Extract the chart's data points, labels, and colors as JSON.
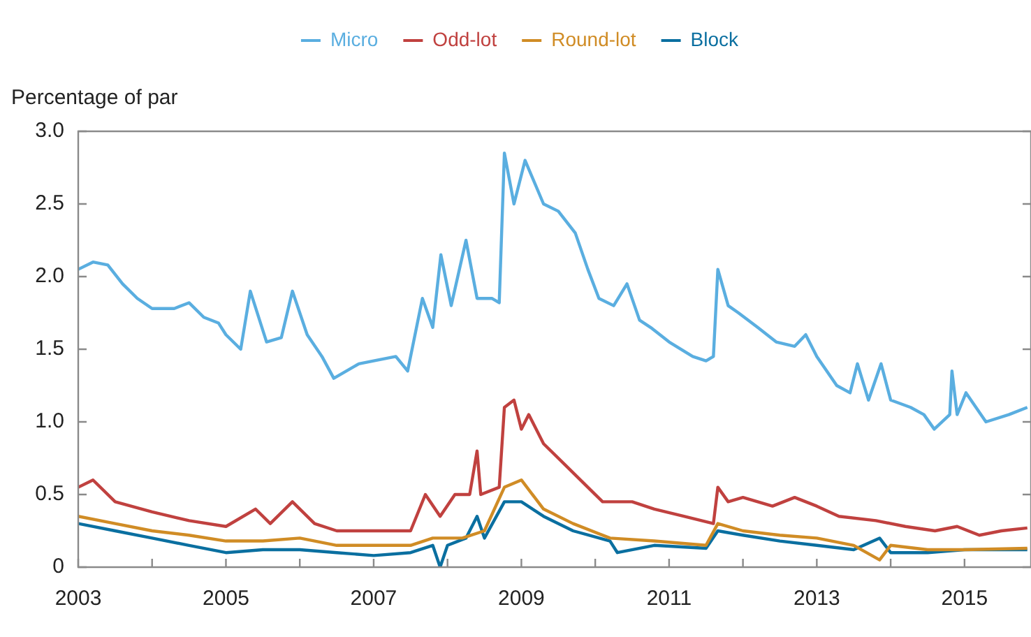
{
  "chart_data": {
    "type": "line",
    "ylabel": "Percentage of par",
    "legend": "top",
    "grid": false,
    "marker": "none",
    "xlim": [
      2003,
      2015.9
    ],
    "xticks": [
      2003,
      {
        "value": 2004,
        "label": null
      },
      2005,
      {
        "value": 2006,
        "label": null
      },
      2007,
      {
        "value": 2008,
        "label": null
      },
      2009,
      {
        "value": 2010,
        "label": null
      },
      2011,
      {
        "value": 2012,
        "label": null
      },
      2013,
      {
        "value": 2014,
        "label": null
      },
      2015
    ],
    "ylim": [
      0,
      3
    ],
    "yticks": [
      0,
      0.5,
      {
        "value": 1,
        "label": "1.0"
      },
      1.5,
      {
        "value": 2,
        "label": "2.0"
      },
      2.5,
      {
        "value": 3,
        "label": "3.0"
      }
    ],
    "series": [
      {
        "name": "Micro",
        "color": "#5aaee0",
        "x": [
          2003,
          2003.2,
          2003.4,
          2003.6,
          2003.8,
          2004,
          2004.3,
          2004.5,
          2004.7,
          2004.9,
          2005,
          2005.2,
          2005.33,
          2005.55,
          2005.75,
          2005.9,
          2006.1,
          2006.3,
          2006.46,
          2006.8,
          2007,
          2007.3,
          2007.46,
          2007.66,
          2007.8,
          2007.91,
          2008.05,
          2008.25,
          2008.4,
          2008.6,
          2008.7,
          2008.77,
          2008.9,
          2009.05,
          2009.3,
          2009.5,
          2009.73,
          2009.9,
          2010.05,
          2010.25,
          2010.43,
          2010.6,
          2010.75,
          2011,
          2011.32,
          2011.5,
          2011.6,
          2011.66,
          2011.8,
          2011.94,
          2012.2,
          2012.45,
          2012.7,
          2012.85,
          2013,
          2013.27,
          2013.45,
          2013.55,
          2013.7,
          2013.87,
          2014,
          2014.27,
          2014.45,
          2014.59,
          2014.8,
          2014.83,
          2014.9,
          2015.02,
          2015.29,
          2015.6,
          2015.85
        ],
        "values": [
          2.05,
          2.1,
          2.08,
          1.95,
          1.85,
          1.78,
          1.78,
          1.82,
          1.72,
          1.68,
          1.6,
          1.5,
          1.9,
          1.55,
          1.58,
          1.9,
          1.6,
          1.45,
          1.3,
          1.4,
          1.42,
          1.45,
          1.35,
          1.85,
          1.65,
          2.15,
          1.8,
          2.25,
          1.85,
          1.85,
          1.82,
          2.85,
          2.5,
          2.8,
          2.5,
          2.45,
          2.3,
          2.05,
          1.85,
          1.8,
          1.95,
          1.7,
          1.65,
          1.55,
          1.45,
          1.42,
          1.45,
          2.05,
          1.8,
          1.75,
          1.65,
          1.55,
          1.52,
          1.6,
          1.45,
          1.25,
          1.2,
          1.4,
          1.15,
          1.4,
          1.15,
          1.1,
          1.05,
          0.95,
          1.05,
          1.35,
          1.05,
          1.2,
          1.0,
          1.05,
          1.1
        ]
      },
      {
        "name": "Odd-lot",
        "color": "#c0413f",
        "x": [
          2003,
          2003.2,
          2003.5,
          2004,
          2004.5,
          2005,
          2005.4,
          2005.6,
          2005.9,
          2006.2,
          2006.5,
          2007,
          2007.5,
          2007.7,
          2007.9,
          2008.1,
          2008.3,
          2008.4,
          2008.45,
          2008.7,
          2008.77,
          2008.9,
          2009,
          2009.1,
          2009.3,
          2009.6,
          2009.9,
          2010.1,
          2010.5,
          2010.8,
          2011.2,
          2011.6,
          2011.66,
          2011.8,
          2012,
          2012.4,
          2012.7,
          2013,
          2013.3,
          2013.8,
          2014.2,
          2014.6,
          2014.9,
          2015.2,
          2015.5,
          2015.85
        ],
        "values": [
          0.55,
          0.6,
          0.45,
          0.38,
          0.32,
          0.28,
          0.4,
          0.3,
          0.45,
          0.3,
          0.25,
          0.25,
          0.25,
          0.5,
          0.35,
          0.5,
          0.5,
          0.8,
          0.5,
          0.55,
          1.1,
          1.15,
          0.95,
          1.05,
          0.85,
          0.7,
          0.55,
          0.45,
          0.45,
          0.4,
          0.35,
          0.3,
          0.55,
          0.45,
          0.48,
          0.42,
          0.48,
          0.42,
          0.35,
          0.32,
          0.28,
          0.25,
          0.28,
          0.22,
          0.25,
          0.27
        ]
      },
      {
        "name": "Round-lot",
        "color": "#d08c25",
        "x": [
          2003,
          2003.5,
          2004,
          2004.5,
          2005,
          2005.5,
          2006,
          2006.5,
          2007,
          2007.5,
          2007.8,
          2008.2,
          2008.5,
          2008.77,
          2009,
          2009.3,
          2009.7,
          2010.2,
          2010.8,
          2011.5,
          2011.66,
          2012,
          2012.5,
          2013,
          2013.5,
          2013.85,
          2014,
          2014.5,
          2015,
          2015.85
        ],
        "values": [
          0.35,
          0.3,
          0.25,
          0.22,
          0.18,
          0.18,
          0.2,
          0.15,
          0.15,
          0.15,
          0.2,
          0.2,
          0.25,
          0.55,
          0.6,
          0.4,
          0.3,
          0.2,
          0.18,
          0.15,
          0.3,
          0.25,
          0.22,
          0.2,
          0.15,
          0.05,
          0.15,
          0.12,
          0.12,
          0.13
        ]
      },
      {
        "name": "Block",
        "color": "#0a6fa0",
        "x": [
          2003,
          2003.5,
          2004,
          2004.5,
          2005,
          2005.5,
          2006,
          2006.5,
          2007,
          2007.5,
          2007.8,
          2007.9,
          2008,
          2008.25,
          2008.4,
          2008.5,
          2008.77,
          2009,
          2009.3,
          2009.7,
          2010.2,
          2010.3,
          2010.8,
          2011.5,
          2011.66,
          2012,
          2012.5,
          2013,
          2013.5,
          2013.85,
          2014,
          2014.5,
          2015,
          2015.85
        ],
        "values": [
          0.3,
          0.25,
          0.2,
          0.15,
          0.1,
          0.12,
          0.12,
          0.1,
          0.08,
          0.1,
          0.15,
          0.0,
          0.15,
          0.2,
          0.35,
          0.2,
          0.45,
          0.45,
          0.35,
          0.25,
          0.18,
          0.1,
          0.15,
          0.13,
          0.25,
          0.22,
          0.18,
          0.15,
          0.12,
          0.2,
          0.1,
          0.1,
          0.12,
          0.12
        ]
      }
    ]
  }
}
